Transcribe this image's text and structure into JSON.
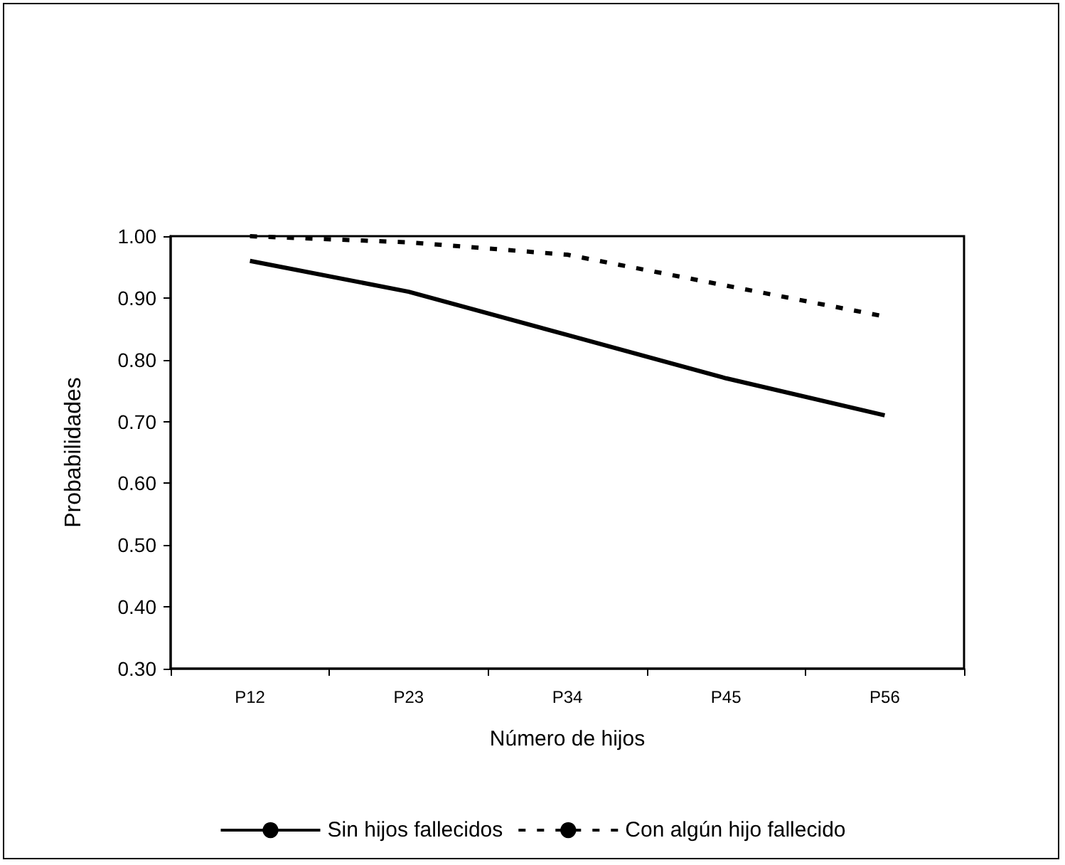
{
  "chart_data": {
    "type": "line",
    "xlabel": "Número de hijos",
    "ylabel": "Probabilidades",
    "categories": [
      "P12",
      "P23",
      "P34",
      "P45",
      "P56"
    ],
    "series": [
      {
        "name": "Sin hijos fallecidos",
        "color": "#000000",
        "line_style": "solid",
        "values": [
          0.96,
          0.91,
          0.84,
          0.77,
          0.71
        ]
      },
      {
        "name": "Con algún hijo fallecido",
        "color": "#000000",
        "line_style": "dotted",
        "values": [
          1.0,
          0.99,
          0.97,
          0.92,
          0.87
        ]
      }
    ],
    "ylim": [
      0.3,
      1.0
    ],
    "yticks": [
      {
        "value": 0.3,
        "label": "0.30"
      },
      {
        "value": 0.4,
        "label": "0.40"
      },
      {
        "value": 0.5,
        "label": "0.50"
      },
      {
        "value": 0.6,
        "label": "0.60"
      },
      {
        "value": 0.7,
        "label": "0.70"
      },
      {
        "value": 0.8,
        "label": "0.80"
      },
      {
        "value": 0.9,
        "label": "0.90"
      },
      {
        "value": 1.0,
        "label": "1.00"
      }
    ],
    "grid": false,
    "legend": "bottom",
    "marker": "none"
  }
}
